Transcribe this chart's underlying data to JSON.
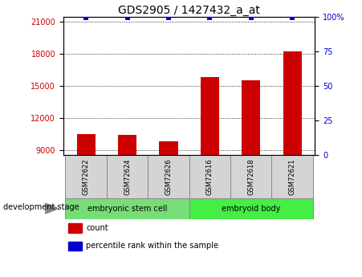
{
  "title": "GDS2905 / 1427432_a_at",
  "samples": [
    "GSM72622",
    "GSM72624",
    "GSM72626",
    "GSM72616",
    "GSM72618",
    "GSM72621"
  ],
  "bar_values": [
    10500,
    10400,
    9800,
    15800,
    15500,
    18200
  ],
  "percentile_values": [
    99,
    99,
    99,
    99,
    99,
    99
  ],
  "bar_color": "#cc0000",
  "dot_color": "#0000cc",
  "ylim_left": [
    8500,
    21500
  ],
  "ylim_right": [
    0,
    100
  ],
  "yticks_left": [
    9000,
    12000,
    15000,
    18000,
    21000
  ],
  "yticks_right": [
    0,
    25,
    50,
    75,
    100
  ],
  "groups": [
    {
      "label": "embryonic stem cell",
      "indices": [
        0,
        1,
        2
      ],
      "color": "#77dd77"
    },
    {
      "label": "embryoid body",
      "indices": [
        3,
        4,
        5
      ],
      "color": "#44ee44"
    }
  ],
  "group_label_prefix": "development stage",
  "legend_count_label": "count",
  "legend_percentile_label": "percentile rank within the sample",
  "title_fontsize": 10,
  "axis_label_color_left": "#cc0000",
  "axis_label_color_right": "#0000cc",
  "grid_color": "#000000",
  "background_color": "#ffffff",
  "plot_bg_color": "#ffffff",
  "sample_box_color": "#d4d4d4",
  "bar_width": 0.45
}
